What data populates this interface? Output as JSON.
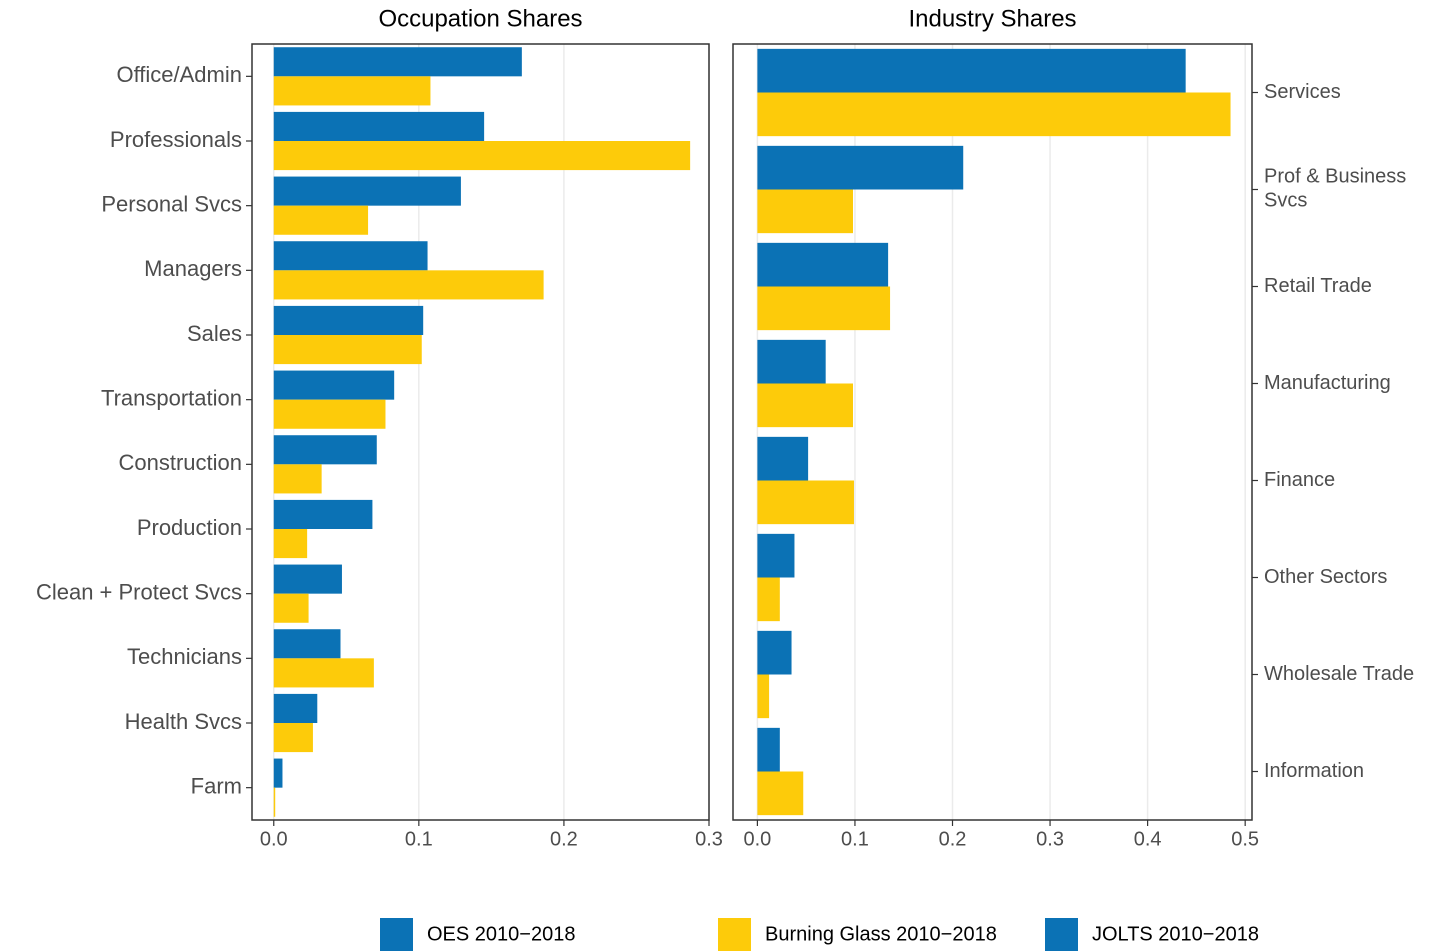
{
  "chart_data": [
    {
      "type": "barh",
      "title": "Occupation Shares",
      "categories": [
        "Office/Admin",
        "Professionals",
        "Personal Svcs",
        "Managers",
        "Sales",
        "Transportation",
        "Construction",
        "Production",
        "Clean + Protect Svcs",
        "Technicians",
        "Health Svcs",
        "Farm"
      ],
      "series": [
        {
          "name": "OES 2010−2018",
          "color": "#0b72b5",
          "values": [
            0.171,
            0.145,
            0.129,
            0.106,
            0.103,
            0.083,
            0.071,
            0.068,
            0.047,
            0.046,
            0.03,
            0.006
          ]
        },
        {
          "name": "Burning Glass 2010−2018",
          "color": "#fdcb0a",
          "values": [
            0.108,
            0.287,
            0.065,
            0.186,
            0.102,
            0.077,
            0.033,
            0.023,
            0.024,
            0.069,
            0.027,
            0.001
          ]
        }
      ],
      "xlim": [
        -0.015,
        0.3
      ],
      "xticks": [
        {
          "value": 0,
          "label": "0.0"
        },
        0.1,
        0.2,
        0.3
      ],
      "grid": true,
      "category_axis": "left"
    },
    {
      "type": "barh",
      "title": "Industry Shares",
      "categories": [
        "Services",
        "Prof & Business\nSvcs",
        "Retail Trade",
        "Manufacturing",
        "Finance",
        "Other Sectors",
        "Wholesale Trade",
        "Information"
      ],
      "series": [
        {
          "name": "JOLTS 2010−2018",
          "color": "#0b72b5",
          "values": [
            0.439,
            0.211,
            0.134,
            0.07,
            0.052,
            0.038,
            0.035,
            0.023
          ]
        },
        {
          "name": "Burning Glass 2010−2018",
          "color": "#fdcb0a",
          "values": [
            0.485,
            0.098,
            0.136,
            0.098,
            0.099,
            0.023,
            0.012,
            0.047
          ]
        }
      ],
      "xlim": [
        -0.025,
        0.507
      ],
      "xticks": [
        {
          "value": 0,
          "label": "0.0"
        },
        0.1,
        0.2,
        0.3,
        0.4,
        0.5
      ],
      "grid": true,
      "category_axis": "right"
    }
  ]
}
